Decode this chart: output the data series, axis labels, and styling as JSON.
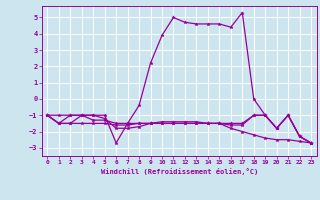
{
  "background_color": "#cce5ee",
  "grid_color": "#ffffff",
  "line_color": "#990099",
  "marker_color": "#990099",
  "xlabel": "Windchill (Refroidissement éolien,°C)",
  "xlim": [
    -0.5,
    23.5
  ],
  "ylim": [
    -3.5,
    5.7
  ],
  "yticks": [
    -3,
    -2,
    -1,
    0,
    1,
    2,
    3,
    4,
    5
  ],
  "xticks": [
    0,
    1,
    2,
    3,
    4,
    5,
    6,
    7,
    8,
    9,
    10,
    11,
    12,
    13,
    14,
    15,
    16,
    17,
    18,
    19,
    20,
    21,
    22,
    23
  ],
  "series": [
    {
      "x": [
        0,
        1,
        2,
        3,
        4,
        5,
        6,
        7,
        8,
        9,
        10,
        11,
        12,
        13,
        14,
        15,
        16,
        17,
        18,
        19,
        20,
        21,
        22,
        23
      ],
      "y": [
        -1,
        -1,
        -1,
        -1,
        -1,
        -1,
        -2.7,
        -1.5,
        -0.4,
        2.2,
        3.9,
        5.0,
        4.7,
        4.6,
        4.6,
        4.6,
        4.4,
        5.3,
        0.0,
        -1.0,
        -1.8,
        -1.0,
        -2.3,
        -2.7
      ]
    },
    {
      "x": [
        0,
        1,
        2,
        3,
        4,
        5,
        6,
        7,
        8,
        9,
        10,
        11,
        12,
        13,
        14,
        15,
        16,
        17,
        18,
        19,
        20,
        21,
        22,
        23
      ],
      "y": [
        -1,
        -1.5,
        -1.5,
        -1.5,
        -1.5,
        -1.5,
        -1.6,
        -1.6,
        -1.5,
        -1.5,
        -1.4,
        -1.4,
        -1.4,
        -1.4,
        -1.5,
        -1.5,
        -1.6,
        -1.6,
        -1.0,
        -1.0,
        -1.8,
        -1.0,
        -2.3,
        -2.7
      ]
    },
    {
      "x": [
        0,
        1,
        2,
        3,
        4,
        5,
        6,
        7,
        8,
        9,
        10,
        11,
        12,
        13,
        14,
        15,
        16,
        17,
        18,
        19,
        20,
        21,
        22,
        23
      ],
      "y": [
        -1,
        -1.5,
        -1,
        -1,
        -1,
        -1.2,
        -1.8,
        -1.8,
        -1.7,
        -1.5,
        -1.5,
        -1.5,
        -1.5,
        -1.5,
        -1.5,
        -1.5,
        -1.5,
        -1.5,
        -1.0,
        -1.0,
        -1.8,
        -1.0,
        -2.3,
        -2.7
      ]
    },
    {
      "x": [
        0,
        1,
        2,
        3,
        4,
        5,
        6,
        7,
        8,
        9,
        10,
        11,
        12,
        13,
        14,
        15,
        16,
        17,
        18,
        19,
        20,
        21,
        22,
        23
      ],
      "y": [
        -1,
        -1.5,
        -1.5,
        -1,
        -1.3,
        -1.3,
        -1.5,
        -1.5,
        -1.5,
        -1.5,
        -1.5,
        -1.5,
        -1.5,
        -1.5,
        -1.5,
        -1.5,
        -1.8,
        -2.0,
        -2.2,
        -2.4,
        -2.5,
        -2.5,
        -2.6,
        -2.7
      ]
    }
  ]
}
